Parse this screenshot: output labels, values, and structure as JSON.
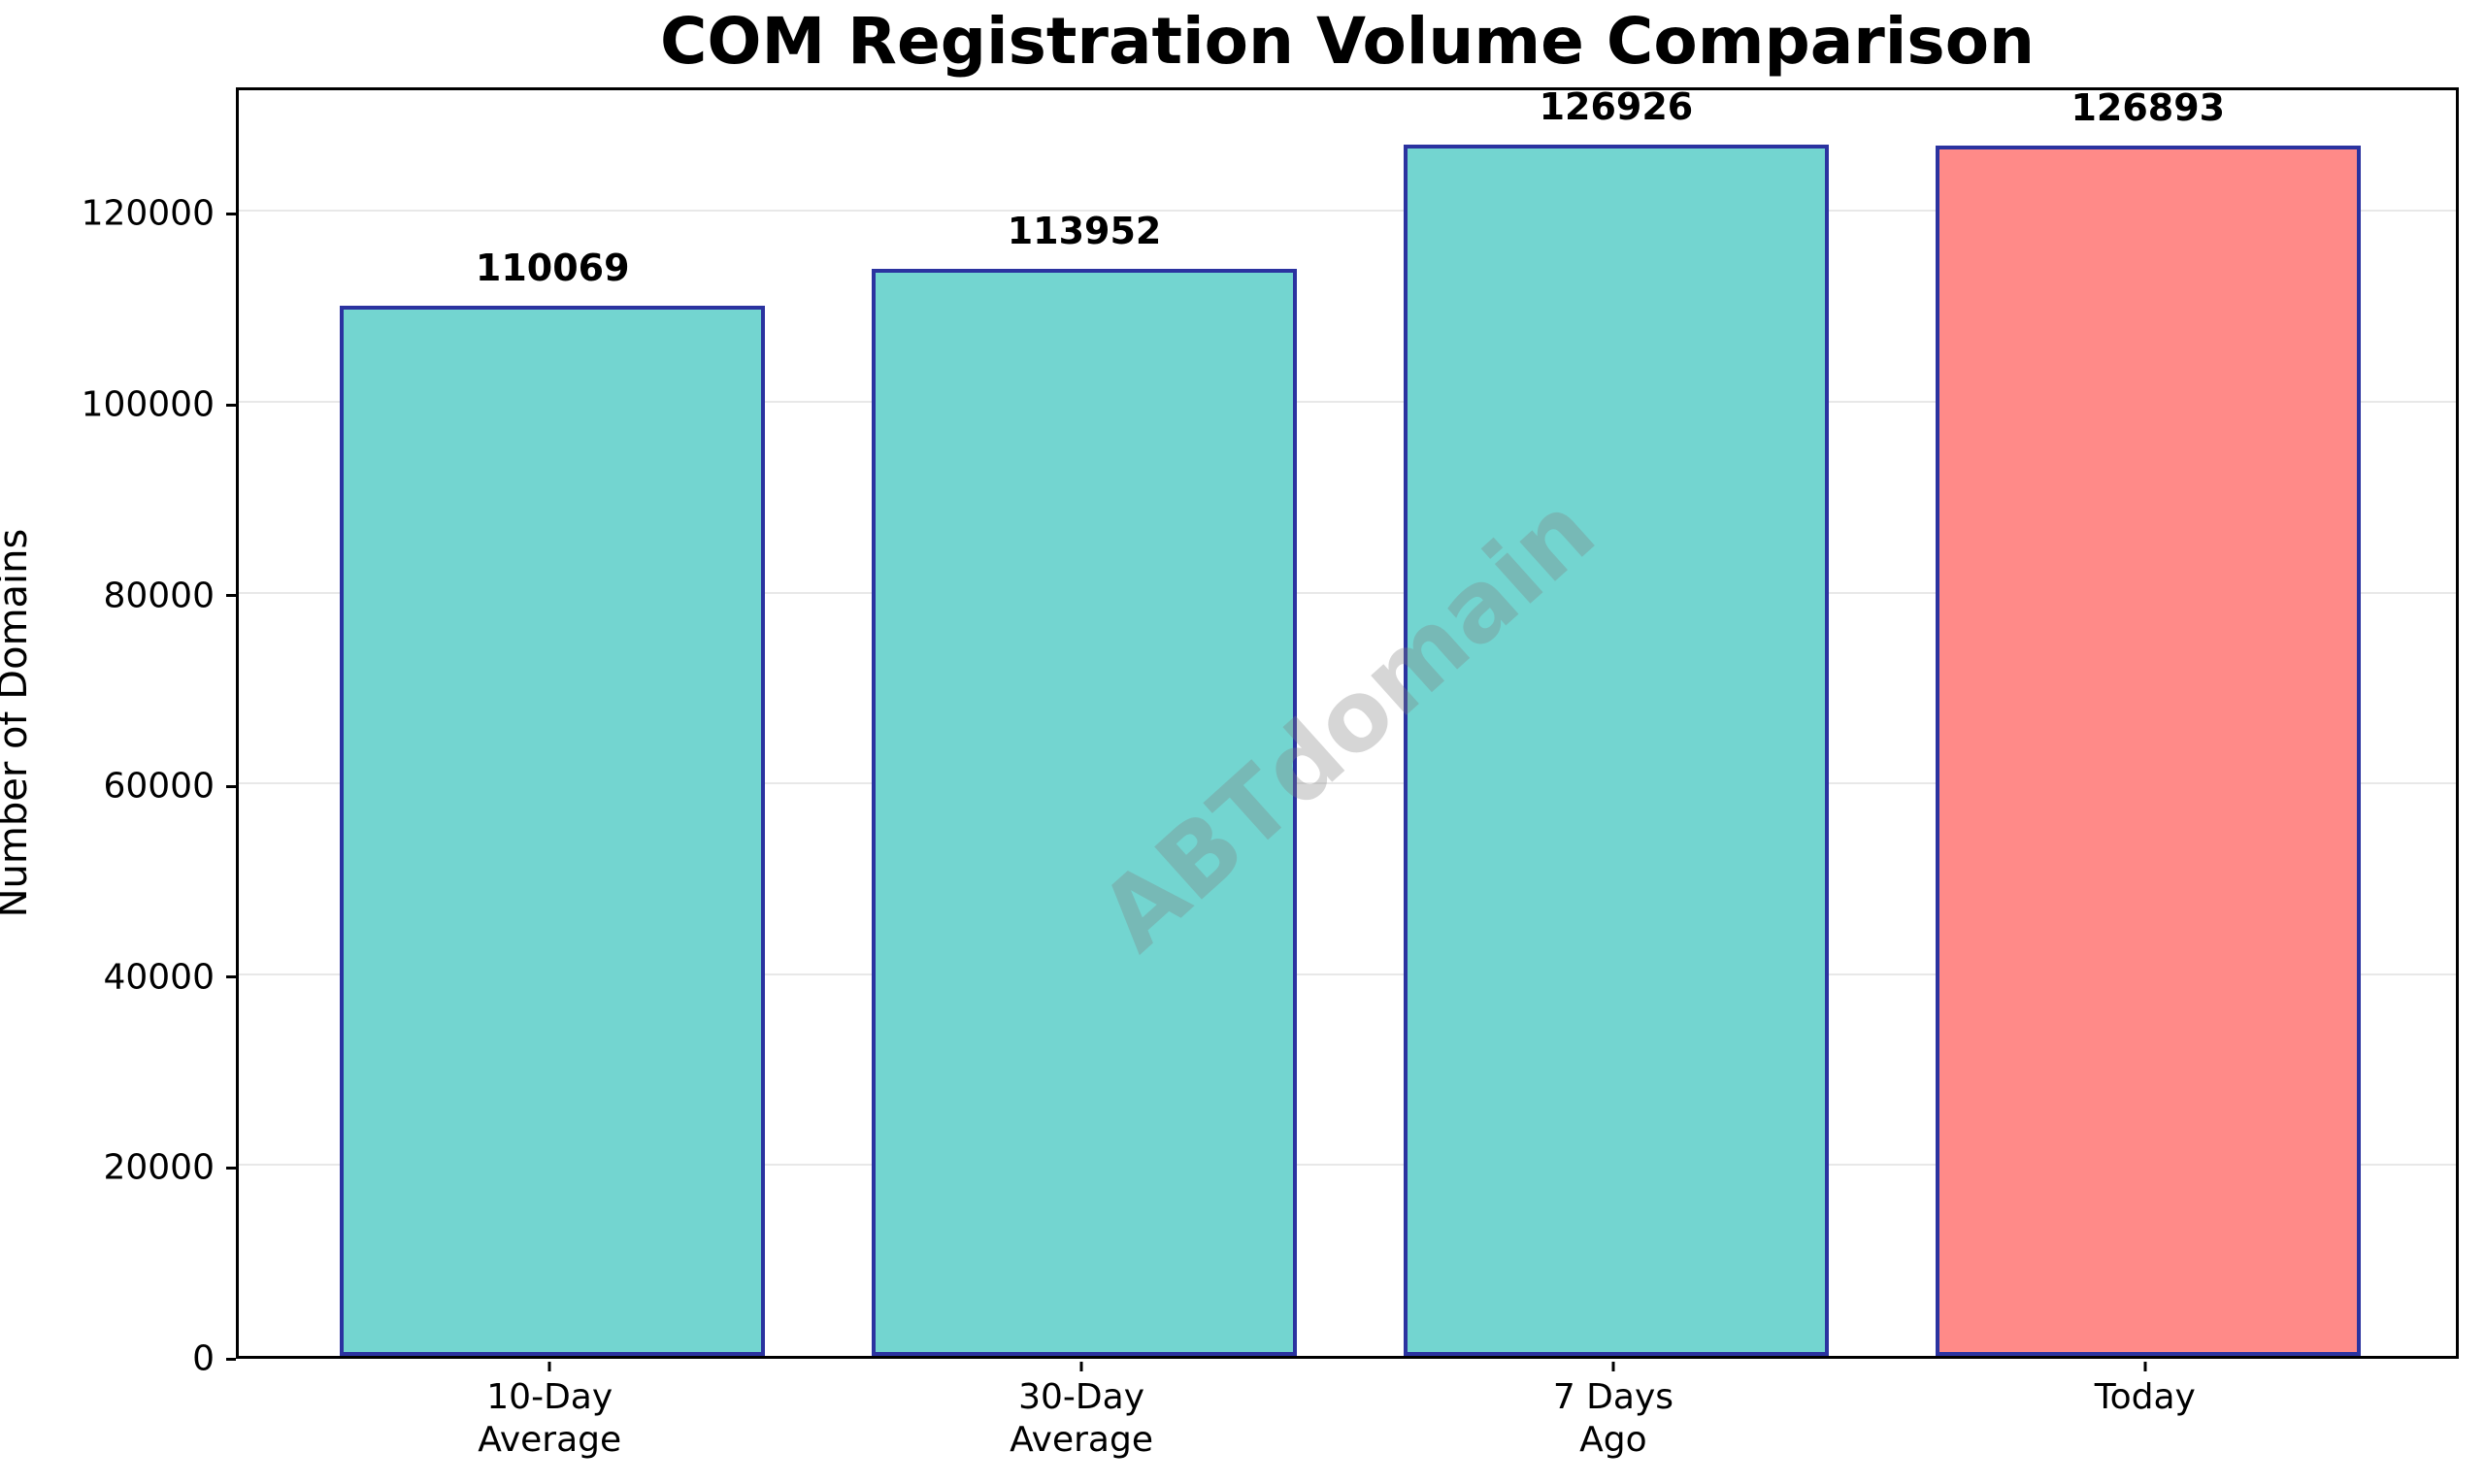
{
  "figure": {
    "background": "#FFFFFF"
  },
  "chart_data": {
    "type": "bar",
    "title": "COM Registration Volume Comparison",
    "xlabel": "",
    "ylabel": "Number of Domains",
    "categories": [
      "10-Day\nAverage",
      "30-Day\nAverage",
      "7 Days\nAgo",
      "Today"
    ],
    "values": [
      110069,
      113952,
      126926,
      126893
    ],
    "value_labels": [
      "110069",
      "113952",
      "126926",
      "126893"
    ],
    "bar_colors": [
      "#73D5D0",
      "#73D5D0",
      "#73D5D0",
      "#FF8A88"
    ],
    "bar_edge_color": "#2B33A0",
    "ylim": [
      0,
      133272
    ],
    "yticks": [
      0,
      20000,
      40000,
      60000,
      80000,
      100000,
      120000
    ],
    "grid": true,
    "grid_color": "#E8E8E8",
    "axis_color": "#000000",
    "legend": false,
    "watermark": "ABTdomain"
  }
}
